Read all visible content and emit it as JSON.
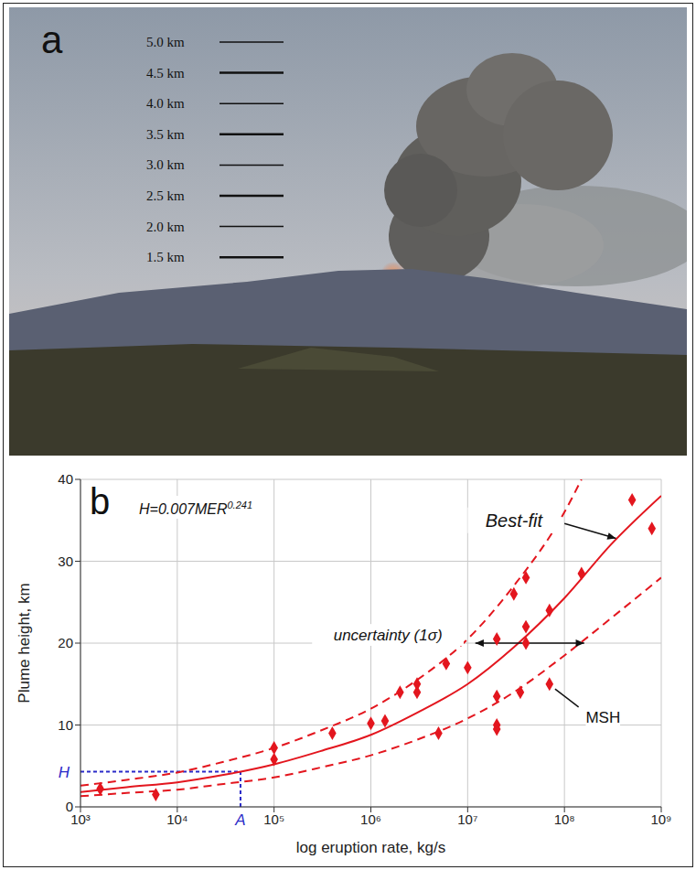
{
  "photo": {
    "panel_label": "a",
    "scale_labels": [
      "5.0 km",
      "4.5 km",
      "4.0 km",
      "3.5 km",
      "3.0 km",
      "2.5 km",
      "2.0 km",
      "1.5 km"
    ]
  },
  "chart_data": {
    "type": "scatter",
    "panel_label": "b",
    "equation": {
      "text": "H=0.007MER",
      "superscript": "0.241"
    },
    "x_label": "log eruption rate, kg/s",
    "y_label": "Plume height, km",
    "log": "x",
    "grid": true,
    "xlim": [
      1000,
      1000000000
    ],
    "xticks": [
      {
        "value": 1000,
        "label": "10³"
      },
      {
        "value": 10000,
        "label": "10⁴"
      },
      {
        "value": 100000,
        "label": "10⁵"
      },
      {
        "value": 1000000,
        "label": "10⁶"
      },
      {
        "value": 10000000,
        "label": "10⁷"
      },
      {
        "value": 100000000,
        "label": "10⁸"
      },
      {
        "value": 1000000000,
        "label": "10⁹"
      }
    ],
    "ylim": [
      0,
      40
    ],
    "yticks": [
      0,
      10,
      20,
      30,
      40
    ],
    "series": [
      {
        "type": "scatter",
        "marker": "diamond",
        "color": "#e3161e",
        "x": [
          1600,
          6000,
          100000,
          100000,
          400000,
          1000000,
          1400000,
          2000000,
          3000000,
          3000000,
          5000000,
          6000000,
          10000000,
          20000000,
          20000000,
          20000000,
          20000000,
          30000000,
          35000000,
          40000000,
          40000000,
          40000000,
          70000000,
          70000000,
          150000000,
          500000000,
          800000000
        ],
        "values": [
          2.2,
          1.5,
          7.2,
          5.8,
          9,
          10.2,
          10.5,
          14,
          15,
          14,
          9,
          17.5,
          17,
          20.5,
          13.5,
          10,
          9.5,
          26,
          14,
          28,
          22,
          20,
          24,
          15,
          28.5,
          37.5,
          34
        ]
      },
      {
        "type": "line",
        "line_style": "solid",
        "color": "#e3161e",
        "x": [
          1000,
          3000,
          10000,
          30000,
          100000,
          300000,
          1000000,
          3000000,
          10000000,
          30000000,
          100000000,
          300000000,
          1000000000
        ],
        "values": [
          1.8,
          2.4,
          3.0,
          3.9,
          5.2,
          6.8,
          8.8,
          11.5,
          15,
          19.5,
          25.5,
          32,
          38
        ]
      },
      {
        "type": "line",
        "line_style": "dashed",
        "color": "#e3161e",
        "x": [
          1000,
          3000,
          10000,
          30000,
          100000,
          300000,
          1000000,
          3000000,
          10000000,
          30000000,
          100000000,
          150000000
        ],
        "values": [
          2.6,
          3.3,
          4.2,
          5.5,
          7.2,
          9.3,
          12,
          15.5,
          20.5,
          27,
          36,
          40
        ]
      },
      {
        "type": "line",
        "line_style": "dashed",
        "color": "#e3161e",
        "x": [
          1000,
          3000,
          10000,
          30000,
          100000,
          300000,
          1000000,
          3000000,
          10000000,
          30000000,
          100000000,
          300000000,
          1000000000
        ],
        "values": [
          1.3,
          1.7,
          2.1,
          2.8,
          3.6,
          4.8,
          6.3,
          8.2,
          10.8,
          14,
          18.5,
          23,
          28
        ]
      }
    ],
    "reference": {
      "x": 45000,
      "y": 4.3,
      "x_label": "A",
      "y_label": "H",
      "color": "#2a2ac8"
    },
    "annotations": [
      {
        "text": "Best-fit",
        "x": 30000000,
        "y": 35,
        "arrow_from": [
          100000000,
          34.6
        ],
        "arrow_to": [
          340000000,
          32.8
        ],
        "line_style": "arrow"
      },
      {
        "text": "uncertainty (1σ)",
        "x": 1500000,
        "y": 21,
        "arrow_from": [
          12000000,
          20
        ],
        "arrow_to": [
          160000000,
          20
        ],
        "line_style": "double_arrow"
      },
      {
        "text": "MSH",
        "x": 250000000,
        "y": 11,
        "arrow_from": [
          140000000,
          12.2
        ],
        "arrow_to": [
          80000000,
          14.4
        ],
        "line_style": "plain"
      }
    ]
  }
}
